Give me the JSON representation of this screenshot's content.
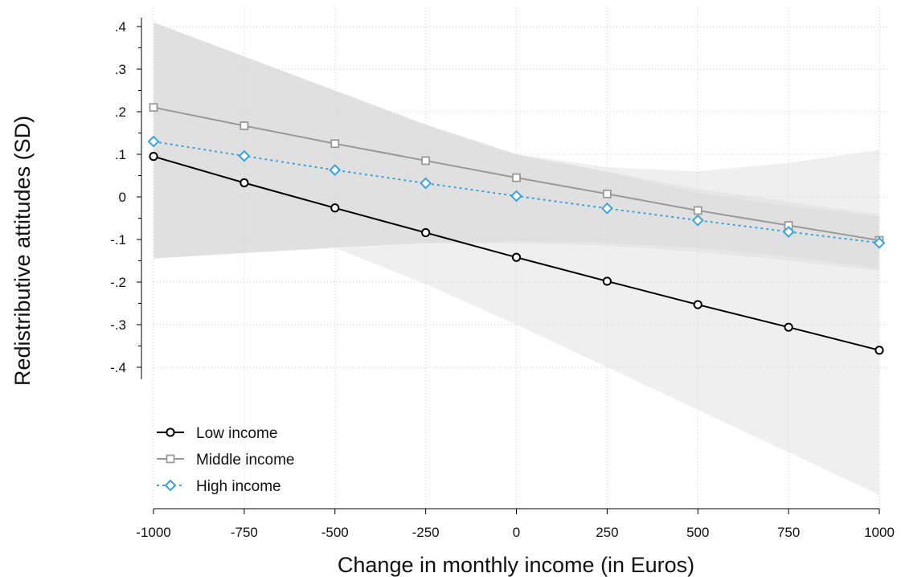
{
  "chart_data": {
    "type": "line",
    "title": "",
    "xlabel": "Change in monthly income (in Euros)",
    "ylabel": "Redistributive attitudes (SD)",
    "x": [
      -1000,
      -750,
      -500,
      -250,
      0,
      250,
      500,
      750,
      1000
    ],
    "xlim": [
      -1000,
      1000
    ],
    "ylim": [
      -0.4,
      0.4
    ],
    "x_ticks": [
      -1000,
      -750,
      -500,
      -250,
      0,
      250,
      500,
      750,
      1000
    ],
    "x_tick_labels": [
      "-1000",
      "-750",
      "-500",
      "-250",
      "0",
      "250",
      "500",
      "750",
      "1000"
    ],
    "y_ticks": [
      0.4,
      0.3,
      0.2,
      0.1,
      0,
      -0.1,
      -0.2,
      -0.3,
      -0.4
    ],
    "y_tick_labels": [
      ".4",
      ".3",
      ".2",
      ".1",
      "0",
      "-.1",
      "-.2",
      "-.3",
      "-.4"
    ],
    "grid": true,
    "legend_position": "bottom-left",
    "series": [
      {
        "name": "Low income",
        "color": "#000000",
        "marker": "circle",
        "line_style": "solid",
        "values": [
          0.095,
          0.033,
          -0.026,
          -0.084,
          -0.142,
          -0.198,
          -0.253,
          -0.306,
          -0.36
        ],
        "ci_lower": [
          -0.145,
          -0.132,
          -0.12,
          -0.205,
          -0.3,
          -0.4,
          -0.5,
          -0.6,
          -0.7
        ],
        "ci_upper": [
          0.41,
          0.33,
          0.25,
          0.17,
          0.1,
          0.07,
          0.06,
          0.08,
          0.11
        ]
      },
      {
        "name": "Middle income",
        "color": "#999999",
        "marker": "square",
        "line_style": "solid",
        "values": [
          0.21,
          0.167,
          0.125,
          0.085,
          0.045,
          0.007,
          -0.032,
          -0.067,
          -0.102
        ],
        "ci_lower": [
          -0.145,
          -0.132,
          -0.12,
          -0.11,
          -0.105,
          -0.11,
          -0.12,
          -0.14,
          -0.17
        ],
        "ci_upper": [
          0.41,
          0.33,
          0.25,
          0.17,
          0.1,
          0.06,
          0.01,
          -0.02,
          -0.045
        ]
      },
      {
        "name": "High income",
        "color": "#3aa3dc",
        "marker": "diamond",
        "line_style": "dotted",
        "values": [
          0.13,
          0.096,
          0.063,
          0.032,
          0.002,
          -0.027,
          -0.055,
          -0.082,
          -0.108
        ],
        "ci_lower": [
          -0.145,
          -0.132,
          -0.12,
          -0.11,
          -0.11,
          -0.115,
          -0.13,
          -0.15,
          -0.175
        ],
        "ci_upper": [
          0.41,
          0.33,
          0.25,
          0.17,
          0.1,
          0.06,
          0.02,
          -0.01,
          -0.04
        ]
      }
    ]
  }
}
